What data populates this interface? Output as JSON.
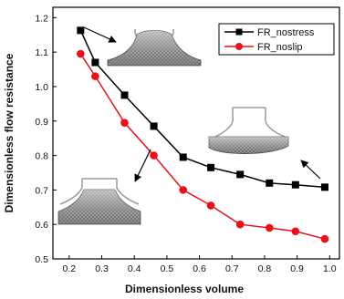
{
  "chart_data": {
    "type": "line",
    "xlabel": "Dimensionless volume",
    "ylabel": "Dimensionless flow resistance",
    "xlim": [
      0.15,
      1.03
    ],
    "ylim": [
      0.5,
      1.23
    ],
    "xticks": [
      "0.2",
      "0.3",
      "0.4",
      "0.5",
      "0.6",
      "0.7",
      "0.8",
      "0.9",
      "1.0"
    ],
    "xtick_values": [
      0.2,
      0.3,
      0.4,
      0.5,
      0.6,
      0.7,
      0.8,
      0.9,
      1.0
    ],
    "yticks": [
      "0.5",
      "0.6",
      "0.7",
      "0.8",
      "0.9",
      "1.0",
      "1.1",
      "1.2"
    ],
    "ytick_values": [
      0.5,
      0.6,
      0.7,
      0.8,
      0.9,
      1.0,
      1.1,
      1.2
    ],
    "grid": false,
    "legend_position": "top-right",
    "series": [
      {
        "name": "FR_nostress",
        "color": "#000000",
        "marker": "square",
        "x": [
          0.235,
          0.28,
          0.37,
          0.46,
          0.55,
          0.635,
          0.725,
          0.815,
          0.895,
          0.985
        ],
        "y": [
          1.163,
          1.07,
          0.975,
          0.885,
          0.795,
          0.765,
          0.745,
          0.72,
          0.715,
          0.708
        ]
      },
      {
        "name": "FR_noslip",
        "color": "#e8101a",
        "marker": "circle",
        "x": [
          0.235,
          0.28,
          0.37,
          0.46,
          0.55,
          0.635,
          0.725,
          0.815,
          0.895,
          0.985
        ],
        "y": [
          1.095,
          1.03,
          0.895,
          0.8,
          0.7,
          0.655,
          0.6,
          0.59,
          0.58,
          0.558
        ]
      }
    ],
    "insets": [
      {
        "icon": "droplet-mesh-shallow-icon",
        "points_to_series": "FR_nostress",
        "points_to_index": 0
      },
      {
        "icon": "droplet-mesh-wide-icon",
        "points_to_series": "FR_nostress",
        "points_to_index": 9
      },
      {
        "icon": "droplet-mesh-medium-icon",
        "points_to_series": "FR_noslip",
        "points_to_index": 3
      }
    ]
  }
}
